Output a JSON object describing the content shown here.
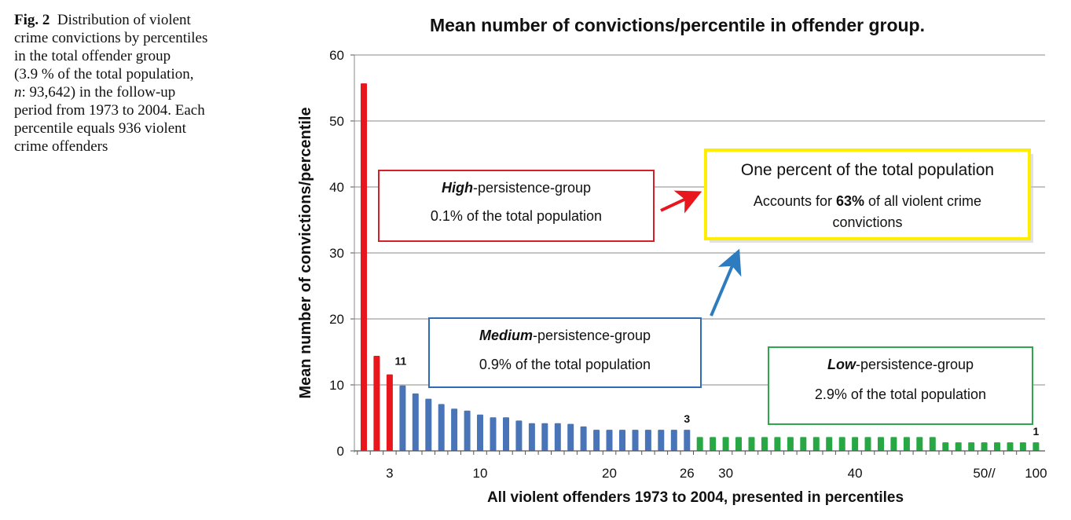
{
  "caption": {
    "label": "Fig. 2",
    "lines": [
      "Distribution of violent",
      "crime convictions by percentiles",
      "in the total offender group",
      "(3.9 % of the total population,",
      ": 93,642) in the follow-up",
      "period from 1973 to 2004. Each",
      "percentile equals 936 violent",
      "crime offenders"
    ],
    "n_symbol": "n"
  },
  "chart_data": {
    "type": "bar",
    "title": "Mean number of convictions/percentile in offender group.",
    "xlabel": "All violent offenders 1973 to 2004, presented in percentiles",
    "ylabel": "Mean number of convictions/percentile",
    "ylim": [
      0,
      60
    ],
    "yticks": [
      "0",
      "10",
      "20",
      "30",
      "40",
      "50",
      "60"
    ],
    "grid": true,
    "x_tick_labels": [
      {
        "text": "3",
        "bar": 3
      },
      {
        "text": "10",
        "bar": 10
      },
      {
        "text": "20",
        "bar": 20
      },
      {
        "text": "26",
        "bar": 26
      },
      {
        "text": "30",
        "bar": 29
      },
      {
        "text": "40",
        "bar": 39
      },
      {
        "text": "50//",
        "bar": 49
      },
      {
        "text": "100",
        "bar": 53
      }
    ],
    "data_labels": [
      {
        "text": "11",
        "bar": 3
      },
      {
        "text": "3",
        "bar": 26
      },
      {
        "text": "1",
        "bar": 53
      }
    ],
    "colors": {
      "high": "#e8161d",
      "medium": "#4a74b8",
      "low": "#27a845"
    },
    "series": [
      {
        "group": "high",
        "values": [
          55.7,
          14.4,
          11.6
        ]
      },
      {
        "group": "medium",
        "values": [
          9.9,
          8.7,
          7.9,
          7.1,
          6.4,
          6.1,
          5.5,
          5.1,
          5.1,
          4.6,
          4.2,
          4.2,
          4.2,
          4.1,
          3.7,
          3.2,
          3.2,
          3.2,
          3.2,
          3.2,
          3.2,
          3.2,
          3.2
        ]
      },
      {
        "group": "low",
        "values": [
          2.1,
          2.1,
          2.1,
          2.1,
          2.1,
          2.1,
          2.1,
          2.1,
          2.1,
          2.1,
          2.1,
          2.1,
          2.1,
          2.1,
          2.1,
          2.1,
          2.1,
          2.1,
          2.1,
          1.3,
          1.3,
          1.3,
          1.3,
          1.3,
          1.3,
          1.3,
          1.3
        ]
      }
    ],
    "annotations": {
      "high": {
        "emph": "High",
        "rest": "-persistence-group",
        "sub": "0.1% of the  total population"
      },
      "medium": {
        "emph": "Medium",
        "rest": "-persistence-group",
        "sub": "0.9% of the total population"
      },
      "low": {
        "emph": "Low",
        "rest": "-persistence-group",
        "sub": "2.9% of the total population"
      },
      "onepct": {
        "title": "One percent of the total population",
        "line1_pre": "Accounts for ",
        "line1_bold": "63%",
        "line1_post": " of all violent crime",
        "line2": "convictions",
        "border": "#ffee00"
      }
    }
  }
}
